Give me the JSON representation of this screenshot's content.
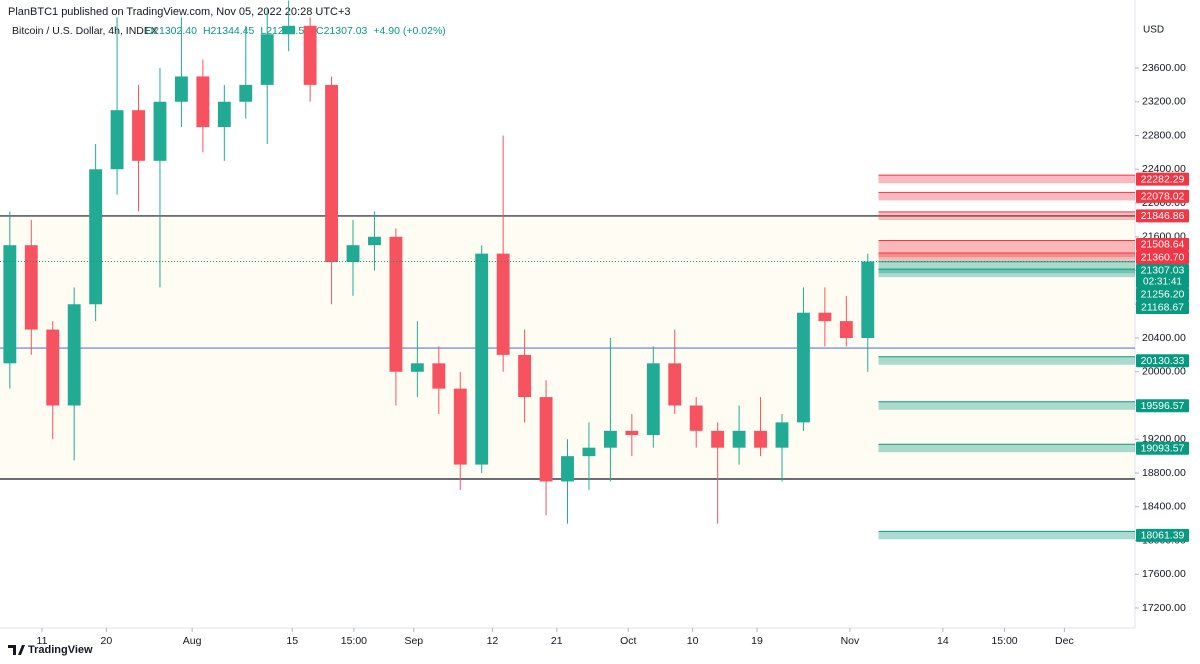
{
  "chart_data": {
    "type": "candlestick",
    "title": "PlanBTC1 published on TradingView.com, Nov 05, 2022 20:28 UTC+3",
    "legend": {
      "symbol": "Bitcoin / U.S. Dollar, 4h, INDEX",
      "open": "O21302.40",
      "high": "H21344.45",
      "low": "L21273.56",
      "close": "C21307.03",
      "change": "+4.90 (+0.02%)"
    },
    "currency": "USD",
    "brand": "TradingView",
    "up_color": "#22ab94",
    "down_color": "#f7525f",
    "candles": {
      "x": [
        "2022-07-05",
        "2022-07-08",
        "2022-07-11",
        "2022-07-14",
        "2022-07-17",
        "2022-07-20",
        "2022-07-23",
        "2022-07-26",
        "2022-07-29",
        "2022-08-01",
        "2022-08-04",
        "2022-08-07",
        "2022-08-10",
        "2022-08-13",
        "2022-08-16",
        "2022-08-19",
        "2022-08-22",
        "2022-08-25",
        "2022-08-28",
        "2022-08-31",
        "2022-09-03",
        "2022-09-06",
        "2022-09-09",
        "2022-09-12",
        "2022-09-15",
        "2022-09-18",
        "2022-09-21",
        "2022-09-24",
        "2022-09-27",
        "2022-09-30",
        "2022-10-03",
        "2022-10-06",
        "2022-10-09",
        "2022-10-12",
        "2022-10-15",
        "2022-10-18",
        "2022-10-21",
        "2022-10-24",
        "2022-10-27",
        "2022-10-30",
        "2022-11-02"
      ],
      "open": [
        20100,
        21500,
        20500,
        19600,
        20800,
        22400,
        23100,
        22500,
        23200,
        23500,
        22900,
        23200,
        23400,
        24000,
        24100,
        23400,
        21300,
        21500,
        21600,
        20000,
        20100,
        19800,
        18900,
        21400,
        20200,
        19700,
        18700,
        19000,
        19100,
        19300,
        19250,
        20100,
        19600,
        19300,
        19100,
        19300,
        19100,
        19400,
        20700,
        20600,
        20400
      ],
      "high": [
        21900,
        21800,
        20600,
        21000,
        22700,
        24200,
        23400,
        23600,
        24200,
        23700,
        23400,
        24100,
        24300,
        24400,
        24200,
        23500,
        21800,
        21900,
        21700,
        20600,
        20300,
        20000,
        21500,
        22800,
        20500,
        19900,
        19200,
        19400,
        20400,
        19500,
        20300,
        20500,
        19700,
        19400,
        19600,
        19700,
        19500,
        21000,
        21000,
        20900,
        21400
      ],
      "low": [
        19800,
        20200,
        19200,
        18950,
        20600,
        22100,
        21900,
        21000,
        22900,
        22600,
        22500,
        23000,
        22700,
        23800,
        23200,
        20800,
        20900,
        21200,
        19600,
        19700,
        19500,
        18600,
        18800,
        20000,
        19400,
        18300,
        18200,
        18600,
        18700,
        19000,
        19100,
        19500,
        19100,
        18200,
        18900,
        19000,
        18700,
        19300,
        20300,
        20300,
        20000
      ],
      "close": [
        21500,
        20500,
        19600,
        20800,
        22400,
        23100,
        22500,
        23200,
        23500,
        22900,
        23200,
        23400,
        24000,
        24100,
        23400,
        21300,
        21500,
        21600,
        20000,
        20100,
        19800,
        18900,
        21400,
        20200,
        19700,
        18700,
        19000,
        19100,
        19300,
        19250,
        20100,
        19600,
        19300,
        19100,
        19300,
        19100,
        19400,
        20700,
        20600,
        20400,
        21307.03
      ]
    },
    "xlim": [
      "2022-07-05T03:00",
      "2022-12-10T21:00"
    ],
    "xticks": [
      {
        "value": "2022-07-11",
        "label": "11"
      },
      {
        "value": "2022-07-20",
        "label": "20"
      },
      {
        "value": "2022-08-01",
        "label": "Aug"
      },
      {
        "value": "2022-08-15",
        "label": "15"
      },
      {
        "value": "2022-08-23T15:00",
        "label": "15:00"
      },
      {
        "value": "2022-09-01",
        "label": "Sep"
      },
      {
        "value": "2022-09-12",
        "label": "12"
      },
      {
        "value": "2022-09-21",
        "label": "21"
      },
      {
        "value": "2022-10-01",
        "label": "Oct"
      },
      {
        "value": "2022-10-10",
        "label": "10"
      },
      {
        "value": "2022-10-19",
        "label": "19"
      },
      {
        "value": "2022-11-01",
        "label": "Nov"
      },
      {
        "value": "2022-11-14",
        "label": "14"
      },
      {
        "value": "2022-11-22T15:00",
        "label": "15:00"
      },
      {
        "value": "2022-12-01",
        "label": "Dec"
      }
    ],
    "ylim": [
      16963,
      24406
    ],
    "yticks": [
      {
        "value": 17200,
        "label": "17200.00"
      },
      {
        "value": 17600,
        "label": "17600.00"
      },
      {
        "value": 18000,
        "label": "18000.00"
      },
      {
        "value": 18400,
        "label": "18400.00"
      },
      {
        "value": 18800,
        "label": "18800.00"
      },
      {
        "value": 19200,
        "label": "19200.00"
      },
      {
        "value": 19600,
        "label": "19600.00"
      },
      {
        "value": 20000,
        "label": "20000.00"
      },
      {
        "value": 20400,
        "label": "20400.00"
      },
      {
        "value": 20800,
        "label": "20800.00"
      },
      {
        "value": 21200,
        "label": "21200.00"
      },
      {
        "value": 21600,
        "label": "21600.00"
      },
      {
        "value": 22000,
        "label": "22000.00"
      },
      {
        "value": 22400,
        "label": "22400.00"
      },
      {
        "value": 22800,
        "label": "22800.00"
      },
      {
        "value": 23200,
        "label": "23200.00"
      },
      {
        "value": 23600,
        "label": "23600.00"
      }
    ],
    "hlines": [
      {
        "value": 21846.86,
        "color": "#131722"
      },
      {
        "value": 18729,
        "color": "#131722"
      },
      {
        "value": 20281,
        "color": "#5b7bd5"
      }
    ],
    "range_color": "#fffdf3",
    "levels": [
      {
        "value": 22282.29,
        "label": "22282.29",
        "color": "#f23645"
      },
      {
        "value": 22078.02,
        "label": "22078.02",
        "color": "#f23645"
      },
      {
        "value": 21846.86,
        "label": "21846.86",
        "color": "#f23645"
      },
      {
        "value": 21508.64,
        "label": "21508.64",
        "color": "#f23645"
      },
      {
        "value": 21360.7,
        "label": "21360.70",
        "color": "#f23645"
      },
      {
        "value": 21256.2,
        "label": "21256.20",
        "color": "#089981"
      },
      {
        "value": 21168.67,
        "label": "21168.67",
        "color": "#089981"
      },
      {
        "value": 20130.33,
        "label": "20130.33",
        "color": "#089981"
      },
      {
        "value": 19596.57,
        "label": "19596.57",
        "color": "#089981"
      },
      {
        "value": 19093.57,
        "label": "19093.57",
        "color": "#089981"
      },
      {
        "value": 18061.39,
        "label": "18061.39",
        "color": "#089981"
      }
    ],
    "price": {
      "value": 21307.03,
      "label": "21307.03",
      "countdown": "02:31:41",
      "color": "#089981"
    }
  }
}
